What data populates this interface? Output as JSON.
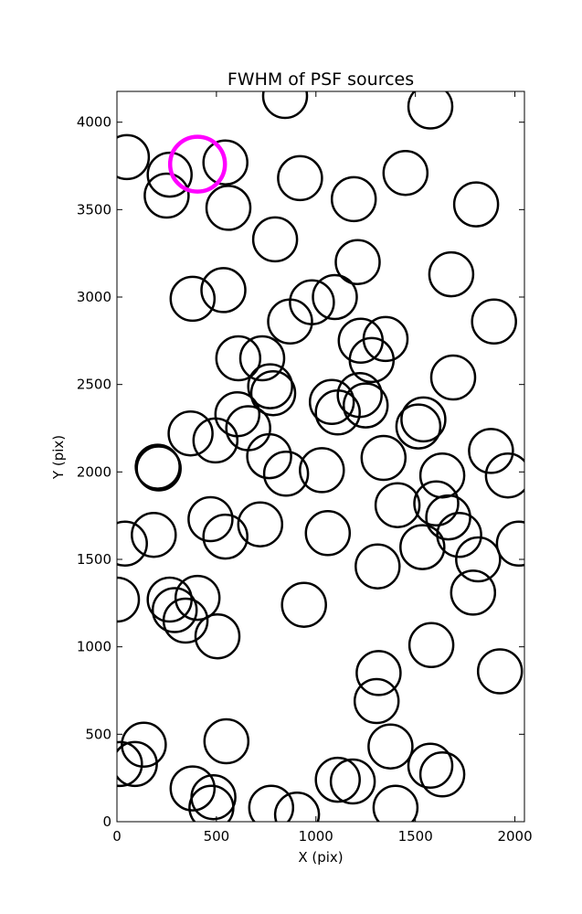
{
  "chart_data": {
    "type": "scatter",
    "title": "FWHM of PSF sources",
    "xlabel": "X (pix)",
    "ylabel": "Y (pix)",
    "xlim": [
      0,
      2048
    ],
    "ylim": [
      0,
      4176
    ],
    "xticks": [
      0,
      500,
      1000,
      1500,
      2000
    ],
    "yticks": [
      0,
      500,
      1000,
      1500,
      2000,
      2500,
      3000,
      3500,
      4000
    ],
    "grid": false,
    "marker_color": "#000000",
    "highlight_color": "#ff00ff",
    "series": [
      {
        "marker": "open-circle",
        "points": [
          [
            845,
            4150
          ],
          [
            1575,
            4090
          ],
          [
            50,
            3800
          ],
          [
            265,
            3700
          ],
          [
            545,
            3770
          ],
          [
            250,
            3580
          ],
          [
            560,
            3510
          ],
          [
            920,
            3680
          ],
          [
            1190,
            3560
          ],
          [
            1450,
            3710
          ],
          [
            1805,
            3530
          ],
          [
            795,
            3330
          ],
          [
            1210,
            3200
          ],
          [
            1680,
            3130
          ],
          [
            380,
            2990
          ],
          [
            535,
            3040
          ],
          [
            980,
            2970
          ],
          [
            1095,
            3000
          ],
          [
            870,
            2860
          ],
          [
            1895,
            2860
          ],
          [
            1225,
            2750
          ],
          [
            1350,
            2760
          ],
          [
            610,
            2650
          ],
          [
            730,
            2650
          ],
          [
            1280,
            2640
          ],
          [
            770,
            2490
          ],
          [
            785,
            2450
          ],
          [
            1690,
            2540
          ],
          [
            1080,
            2400
          ],
          [
            1220,
            2440
          ],
          [
            1250,
            2380
          ],
          [
            1110,
            2340
          ],
          [
            605,
            2330
          ],
          [
            660,
            2250
          ],
          [
            1540,
            2300
          ],
          [
            1515,
            2260
          ],
          [
            370,
            2220
          ],
          [
            495,
            2180
          ],
          [
            765,
            2090
          ],
          [
            1340,
            2080
          ],
          [
            205,
            2030
          ],
          [
            210,
            2020
          ],
          [
            850,
            1990
          ],
          [
            1030,
            2010
          ],
          [
            1635,
            1980
          ],
          [
            1880,
            2120
          ],
          [
            1965,
            1980
          ],
          [
            1410,
            1810
          ],
          [
            1605,
            1820
          ],
          [
            1665,
            1740
          ],
          [
            470,
            1730
          ],
          [
            720,
            1700
          ],
          [
            1060,
            1650
          ],
          [
            185,
            1640
          ],
          [
            545,
            1630
          ],
          [
            1720,
            1640
          ],
          [
            40,
            1590
          ],
          [
            1535,
            1570
          ],
          [
            2020,
            1590
          ],
          [
            1310,
            1460
          ],
          [
            1815,
            1500
          ],
          [
            0,
            1270
          ],
          [
            265,
            1270
          ],
          [
            290,
            1210
          ],
          [
            345,
            1150
          ],
          [
            405,
            1280
          ],
          [
            505,
            1060
          ],
          [
            940,
            1240
          ],
          [
            1580,
            1010
          ],
          [
            1790,
            1310
          ],
          [
            1315,
            850
          ],
          [
            1305,
            690
          ],
          [
            1925,
            860
          ],
          [
            135,
            440
          ],
          [
            15,
            330
          ],
          [
            90,
            330
          ],
          [
            550,
            460
          ],
          [
            1375,
            430
          ],
          [
            380,
            190
          ],
          [
            485,
            140
          ],
          [
            475,
            80
          ],
          [
            775,
            80
          ],
          [
            905,
            40
          ],
          [
            1110,
            240
          ],
          [
            1185,
            230
          ],
          [
            1400,
            80
          ],
          [
            1575,
            320
          ],
          [
            1635,
            270
          ]
        ]
      },
      {
        "marker": "open-circle-highlight",
        "points": [
          [
            405,
            3760
          ]
        ]
      }
    ]
  }
}
